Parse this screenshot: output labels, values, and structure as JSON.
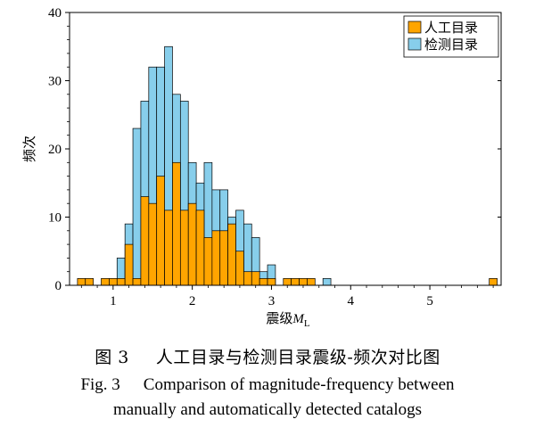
{
  "chart_data": {
    "type": "bar",
    "title": "",
    "xlabel": "震级",
    "xlabel_var": "M",
    "xlabel_sub": "L",
    "ylabel": "频次",
    "xlim": [
      0.45,
      5.9
    ],
    "ylim": [
      0,
      40
    ],
    "bin_width": 0.1,
    "xticks": [
      1,
      2,
      3,
      4,
      5
    ],
    "yticks": [
      0,
      10,
      20,
      30,
      40
    ],
    "legend_position": "top-right",
    "grid": false,
    "series": [
      {
        "name": "检测目录",
        "color": "#87ceeb",
        "bins": [
          {
            "x": 0.5,
            "y": 0
          },
          {
            "x": 0.6,
            "y": 0
          },
          {
            "x": 0.7,
            "y": 0
          },
          {
            "x": 0.8,
            "y": 0
          },
          {
            "x": 0.9,
            "y": 0
          },
          {
            "x": 1.0,
            "y": 0
          },
          {
            "x": 1.1,
            "y": 4
          },
          {
            "x": 1.2,
            "y": 9
          },
          {
            "x": 1.3,
            "y": 23
          },
          {
            "x": 1.4,
            "y": 27
          },
          {
            "x": 1.5,
            "y": 32
          },
          {
            "x": 1.6,
            "y": 32
          },
          {
            "x": 1.7,
            "y": 35
          },
          {
            "x": 1.8,
            "y": 28
          },
          {
            "x": 1.9,
            "y": 27
          },
          {
            "x": 2.0,
            "y": 18
          },
          {
            "x": 2.1,
            "y": 15
          },
          {
            "x": 2.2,
            "y": 18
          },
          {
            "x": 2.3,
            "y": 14
          },
          {
            "x": 2.4,
            "y": 14
          },
          {
            "x": 2.5,
            "y": 10
          },
          {
            "x": 2.6,
            "y": 11
          },
          {
            "x": 2.7,
            "y": 9
          },
          {
            "x": 2.8,
            "y": 7
          },
          {
            "x": 2.9,
            "y": 2
          },
          {
            "x": 3.0,
            "y": 3
          },
          {
            "x": 3.1,
            "y": 0
          },
          {
            "x": 3.2,
            "y": 0
          },
          {
            "x": 3.3,
            "y": 1
          },
          {
            "x": 3.4,
            "y": 1
          },
          {
            "x": 3.5,
            "y": 0
          },
          {
            "x": 3.6,
            "y": 0
          },
          {
            "x": 3.7,
            "y": 1
          }
        ]
      },
      {
        "name": "人工目录",
        "color": "#ffa500",
        "bins": [
          {
            "x": 0.6,
            "y": 1
          },
          {
            "x": 0.7,
            "y": 1
          },
          {
            "x": 0.9,
            "y": 1
          },
          {
            "x": 1.0,
            "y": 1
          },
          {
            "x": 1.1,
            "y": 1
          },
          {
            "x": 1.2,
            "y": 6
          },
          {
            "x": 1.3,
            "y": 1
          },
          {
            "x": 1.4,
            "y": 13
          },
          {
            "x": 1.5,
            "y": 12
          },
          {
            "x": 1.6,
            "y": 16
          },
          {
            "x": 1.7,
            "y": 11
          },
          {
            "x": 1.8,
            "y": 18
          },
          {
            "x": 1.9,
            "y": 11
          },
          {
            "x": 2.0,
            "y": 12
          },
          {
            "x": 2.1,
            "y": 11
          },
          {
            "x": 2.2,
            "y": 7
          },
          {
            "x": 2.3,
            "y": 8
          },
          {
            "x": 2.4,
            "y": 8
          },
          {
            "x": 2.5,
            "y": 9
          },
          {
            "x": 2.6,
            "y": 5
          },
          {
            "x": 2.7,
            "y": 2
          },
          {
            "x": 2.8,
            "y": 2
          },
          {
            "x": 2.9,
            "y": 1
          },
          {
            "x": 3.0,
            "y": 1
          },
          {
            "x": 3.2,
            "y": 1
          },
          {
            "x": 3.3,
            "y": 1
          },
          {
            "x": 3.4,
            "y": 1
          },
          {
            "x": 3.5,
            "y": 1
          },
          {
            "x": 5.8,
            "y": 1
          }
        ]
      }
    ],
    "legend_order": [
      "人工目录",
      "检测目录"
    ]
  },
  "captions": {
    "cn_label": "图 3",
    "cn_text": "人工目录与检测目录震级-频次对比图",
    "en_label": "Fig. 3",
    "en_text": "Comparison of magnitude-frequency between",
    "en_text2": "manually and automatically detected catalogs"
  },
  "colors": {
    "edge": "#000000",
    "axis": "#000000"
  }
}
